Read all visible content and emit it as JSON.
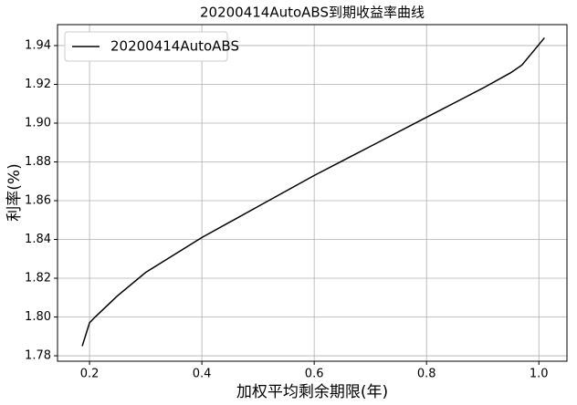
{
  "chart_data": {
    "type": "line",
    "title": "20200414AutoABS到期收益率曲线",
    "x_label": "加权平均剩余期限(年)",
    "y_label": "利率(%)",
    "x": [
      0.187,
      0.2,
      0.21,
      0.25,
      0.3,
      0.35,
      0.4,
      0.5,
      0.6,
      0.7,
      0.8,
      0.9,
      0.95,
      0.97,
      1.01
    ],
    "series": [
      {
        "name": "20200414AutoABS",
        "color": "#000000",
        "values": [
          1.785,
          1.797,
          1.8,
          1.811,
          1.823,
          1.832,
          1.841,
          1.857,
          1.873,
          1.888,
          1.903,
          1.918,
          1.926,
          1.93,
          1.944
        ]
      }
    ],
    "xlim": [
      0.143,
      1.05
    ],
    "ylim": [
      1.7772,
      1.9508
    ],
    "xticks": [
      0.2,
      0.4,
      0.6,
      0.8,
      {
        "value": 1.0,
        "label": "1.0"
      }
    ],
    "yticks": [
      1.78,
      {
        "value": 1.8,
        "label": "1.80"
      },
      1.82,
      1.84,
      1.86,
      1.88,
      {
        "value": 1.9,
        "label": "1.90"
      },
      1.92,
      1.94
    ],
    "grid": true,
    "legend": "upper-left"
  }
}
